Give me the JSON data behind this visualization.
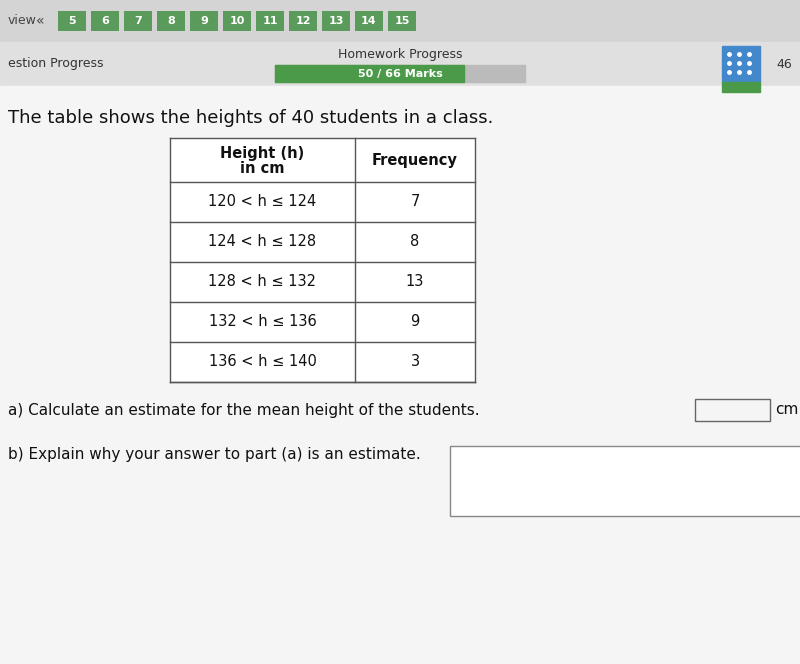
{
  "bg_color": "#e8e8e8",
  "top_bar_bg": "#d8d8d8",
  "nav_numbers": [
    "5",
    "6",
    "7",
    "8",
    "9",
    "10",
    "11",
    "12",
    "13",
    "14",
    "15"
  ],
  "nav_btn_color": "#5a9a5a",
  "nav_text_color": "#ffffff",
  "view_text": "view",
  "chevron": "«",
  "question_progress_label": "estion Progress",
  "homework_progress_label": "Homework Progress",
  "homework_marks": "50 / 66 Marks",
  "homework_bar_color": "#4a9a4a",
  "page_number": "46",
  "title": "The table shows the heights of 40 students in a class.",
  "col1_header_line1": "Height (h)",
  "col1_header_line2": "in cm",
  "col2_header": "Frequency",
  "rows": [
    {
      "height_range": "120 < h ≤ 124",
      "frequency": "7"
    },
    {
      "height_range": "124 < h ≤ 128",
      "frequency": "8"
    },
    {
      "height_range": "128 < h ≤ 132",
      "frequency": "13"
    },
    {
      "height_range": "132 < h ≤ 136",
      "frequency": "9"
    },
    {
      "height_range": "136 < h ≤ 140",
      "frequency": "3"
    }
  ],
  "question_a": "a) Calculate an estimate for the mean height of the students.",
  "answer_box_a_label": "cm",
  "question_b": "b) Explain why your answer to part (a) is an estimate.",
  "table_border_color": "#555555",
  "title_font_size": 13,
  "header_font_size": 10.5,
  "row_font_size": 10.5,
  "question_font_size": 11
}
